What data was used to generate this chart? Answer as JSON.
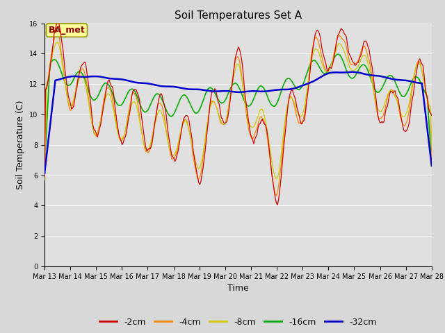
{
  "title": "Soil Temperatures Set A",
  "xlabel": "Time",
  "ylabel": "Soil Temperature (C)",
  "annotation": "BA_met",
  "ylim": [
    0,
    16
  ],
  "xlim": [
    0,
    15
  ],
  "yticks": [
    0,
    2,
    4,
    6,
    8,
    10,
    12,
    14,
    16
  ],
  "xtick_labels": [
    "Mar 13",
    "Mar 14",
    "Mar 15",
    "Mar 16",
    "Mar 17",
    "Mar 18",
    "Mar 19",
    "Mar 20",
    "Mar 21",
    "Mar 22",
    "Mar 23",
    "Mar 24",
    "Mar 25",
    "Mar 26",
    "Mar 27",
    "Mar 28"
  ],
  "series_labels": [
    "-2cm",
    "-4cm",
    "-8cm",
    "-16cm",
    "-32cm"
  ],
  "series_colors": [
    "#cc0000",
    "#ff8800",
    "#cccc00",
    "#00aa00",
    "#0000cc"
  ],
  "fig_facecolor": "#d8d8d8",
  "plot_bg_color": "#e0e0e0",
  "grid_color": "#ffffff",
  "title_fontsize": 11,
  "axis_fontsize": 9,
  "tick_fontsize": 7,
  "legend_fontsize": 9,
  "annotation_facecolor": "#ffff99",
  "annotation_edgecolor": "#999900",
  "annotation_textcolor": "#880000",
  "annotation_fontsize": 9
}
